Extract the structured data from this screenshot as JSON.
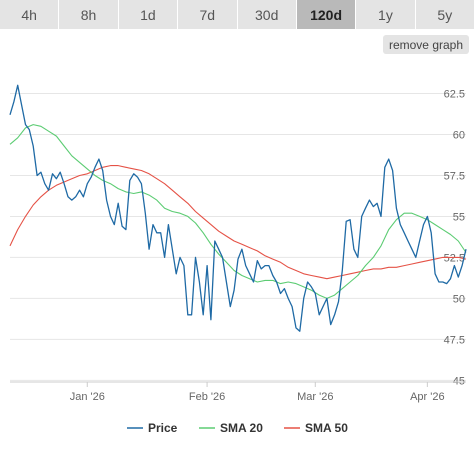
{
  "range_tabs": [
    {
      "label": "4h",
      "active": false
    },
    {
      "label": "8h",
      "active": false
    },
    {
      "label": "1d",
      "active": false
    },
    {
      "label": "7d",
      "active": false
    },
    {
      "label": "30d",
      "active": false
    },
    {
      "label": "120d",
      "active": true
    },
    {
      "label": "1y",
      "active": false
    },
    {
      "label": "5y",
      "active": false
    }
  ],
  "remove_graph_label": "remove graph",
  "chart_data": {
    "type": "line",
    "x_ticks": [
      "Jan '26",
      "Feb '26",
      "Mar '26",
      "Apr '26"
    ],
    "y_ticks": [
      45,
      47.5,
      50,
      52.5,
      55,
      57.5,
      60,
      62.5
    ],
    "y_tick_labels": [
      "45",
      "47.5",
      "50",
      "52.5",
      "55",
      "57.5",
      "60",
      "62.5"
    ],
    "ylim": [
      44.9,
      64.3
    ],
    "x_range": [
      0,
      118
    ],
    "x_tick_positions": [
      20,
      51,
      79,
      108
    ],
    "grid": true,
    "legend_position": "bottom",
    "series": [
      {
        "name": "Price",
        "color": "#1f6aa5",
        "points": [
          [
            0,
            61.2
          ],
          [
            1,
            62.0
          ],
          [
            2,
            63.0
          ],
          [
            3,
            61.8
          ],
          [
            4,
            60.6
          ],
          [
            5,
            60.3
          ],
          [
            6,
            59.3
          ],
          [
            7,
            57.5
          ],
          [
            8,
            57.7
          ],
          [
            9,
            57.0
          ],
          [
            10,
            56.6
          ],
          [
            11,
            57.6
          ],
          [
            12,
            57.3
          ],
          [
            13,
            57.7
          ],
          [
            14,
            57.0
          ],
          [
            15,
            56.2
          ],
          [
            16,
            56.0
          ],
          [
            17,
            56.2
          ],
          [
            18,
            56.6
          ],
          [
            19,
            56.2
          ],
          [
            20,
            57.0
          ],
          [
            21,
            57.4
          ],
          [
            22,
            58.0
          ],
          [
            23,
            58.5
          ],
          [
            24,
            57.8
          ],
          [
            25,
            56.0
          ],
          [
            26,
            55.0
          ],
          [
            27,
            54.5
          ],
          [
            28,
            55.8
          ],
          [
            29,
            54.4
          ],
          [
            30,
            54.2
          ],
          [
            31,
            57.2
          ],
          [
            32,
            57.6
          ],
          [
            33,
            57.4
          ],
          [
            34,
            57.0
          ],
          [
            35,
            55.2
          ],
          [
            36,
            53.0
          ],
          [
            37,
            54.5
          ],
          [
            38,
            54.0
          ],
          [
            39,
            54.0
          ],
          [
            40,
            52.5
          ],
          [
            41,
            54.5
          ],
          [
            42,
            53.0
          ],
          [
            43,
            51.5
          ],
          [
            44,
            52.5
          ],
          [
            45,
            52.0
          ],
          [
            46,
            49.0
          ],
          [
            47,
            49.0
          ],
          [
            48,
            52.5
          ],
          [
            49,
            51.0
          ],
          [
            50,
            49.0
          ],
          [
            51,
            52.0
          ],
          [
            52,
            48.7
          ],
          [
            53,
            53.5
          ],
          [
            54,
            53.0
          ],
          [
            55,
            52.5
          ],
          [
            56,
            51.0
          ],
          [
            57,
            49.5
          ],
          [
            58,
            50.5
          ],
          [
            59,
            52.4
          ],
          [
            60,
            53.0
          ],
          [
            61,
            52.0
          ],
          [
            62,
            51.5
          ],
          [
            63,
            51.0
          ],
          [
            64,
            52.3
          ],
          [
            65,
            51.8
          ],
          [
            66,
            52.0
          ],
          [
            67,
            52.0
          ],
          [
            68,
            51.4
          ],
          [
            69,
            51.0
          ],
          [
            70,
            50.3
          ],
          [
            71,
            50.6
          ],
          [
            72,
            50.0
          ],
          [
            73,
            49.5
          ],
          [
            74,
            48.2
          ],
          [
            75,
            48.0
          ],
          [
            76,
            50.0
          ],
          [
            77,
            51.0
          ],
          [
            78,
            50.7
          ],
          [
            79,
            50.3
          ],
          [
            80,
            49.0
          ],
          [
            81,
            49.5
          ],
          [
            82,
            50.0
          ],
          [
            83,
            48.4
          ],
          [
            84,
            49.0
          ],
          [
            85,
            49.8
          ],
          [
            86,
            51.7
          ],
          [
            87,
            54.7
          ],
          [
            88,
            54.8
          ],
          [
            89,
            53.0
          ],
          [
            90,
            52.5
          ],
          [
            91,
            55.0
          ],
          [
            92,
            55.5
          ],
          [
            93,
            56.0
          ],
          [
            94,
            55.6
          ],
          [
            95,
            55.8
          ],
          [
            96,
            55.0
          ],
          [
            97,
            58.0
          ],
          [
            98,
            58.5
          ],
          [
            99,
            57.8
          ],
          [
            100,
            55.5
          ],
          [
            101,
            54.5
          ],
          [
            102,
            54.0
          ],
          [
            103,
            53.5
          ],
          [
            104,
            53.0
          ],
          [
            105,
            52.5
          ],
          [
            106,
            53.5
          ],
          [
            107,
            54.5
          ],
          [
            108,
            55.0
          ],
          [
            109,
            54.0
          ],
          [
            110,
            51.5
          ],
          [
            111,
            51.0
          ],
          [
            112,
            51.0
          ],
          [
            113,
            50.9
          ],
          [
            114,
            51.2
          ],
          [
            115,
            52.0
          ],
          [
            116,
            51.3
          ],
          [
            117,
            52.0
          ],
          [
            118,
            53.0
          ]
        ]
      },
      {
        "name": "SMA 20",
        "color": "#5ccc73",
        "points": [
          [
            0,
            59.4
          ],
          [
            2,
            59.8
          ],
          [
            4,
            60.4
          ],
          [
            6,
            60.6
          ],
          [
            8,
            60.5
          ],
          [
            10,
            60.2
          ],
          [
            12,
            59.9
          ],
          [
            14,
            59.3
          ],
          [
            16,
            58.7
          ],
          [
            18,
            58.3
          ],
          [
            20,
            57.9
          ],
          [
            22,
            57.5
          ],
          [
            24,
            57.2
          ],
          [
            26,
            57.0
          ],
          [
            28,
            56.7
          ],
          [
            30,
            56.5
          ],
          [
            32,
            56.4
          ],
          [
            34,
            56.5
          ],
          [
            36,
            56.3
          ],
          [
            38,
            56.0
          ],
          [
            40,
            55.5
          ],
          [
            42,
            55.3
          ],
          [
            44,
            55.2
          ],
          [
            46,
            55.0
          ],
          [
            48,
            54.6
          ],
          [
            50,
            54.0
          ],
          [
            52,
            53.3
          ],
          [
            54,
            52.7
          ],
          [
            56,
            52.2
          ],
          [
            58,
            51.7
          ],
          [
            60,
            51.4
          ],
          [
            62,
            51.2
          ],
          [
            64,
            51.0
          ],
          [
            66,
            51.1
          ],
          [
            68,
            51.1
          ],
          [
            70,
            50.9
          ],
          [
            72,
            51.0
          ],
          [
            74,
            50.9
          ],
          [
            76,
            50.7
          ],
          [
            78,
            50.5
          ],
          [
            80,
            50.2
          ],
          [
            82,
            50.0
          ],
          [
            84,
            50.2
          ],
          [
            86,
            50.6
          ],
          [
            88,
            51.0
          ],
          [
            90,
            51.4
          ],
          [
            92,
            52.0
          ],
          [
            94,
            52.5
          ],
          [
            96,
            53.2
          ],
          [
            98,
            54.2
          ],
          [
            100,
            54.8
          ],
          [
            102,
            55.2
          ],
          [
            104,
            55.2
          ],
          [
            106,
            55.0
          ],
          [
            108,
            54.8
          ],
          [
            110,
            54.5
          ],
          [
            112,
            54.2
          ],
          [
            114,
            53.9
          ],
          [
            116,
            53.5
          ],
          [
            118,
            52.8
          ]
        ]
      },
      {
        "name": "SMA 50",
        "color": "#e55246",
        "points": [
          [
            0,
            53.2
          ],
          [
            2,
            54.2
          ],
          [
            4,
            55.0
          ],
          [
            6,
            55.7
          ],
          [
            8,
            56.2
          ],
          [
            10,
            56.6
          ],
          [
            12,
            56.9
          ],
          [
            14,
            57.1
          ],
          [
            16,
            57.3
          ],
          [
            18,
            57.5
          ],
          [
            20,
            57.6
          ],
          [
            22,
            57.8
          ],
          [
            24,
            58.0
          ],
          [
            26,
            58.1
          ],
          [
            28,
            58.1
          ],
          [
            30,
            58.0
          ],
          [
            32,
            57.9
          ],
          [
            34,
            57.8
          ],
          [
            36,
            57.6
          ],
          [
            38,
            57.3
          ],
          [
            40,
            57.0
          ],
          [
            42,
            56.6
          ],
          [
            44,
            56.2
          ],
          [
            46,
            55.8
          ],
          [
            48,
            55.3
          ],
          [
            50,
            54.9
          ],
          [
            52,
            54.5
          ],
          [
            54,
            54.1
          ],
          [
            56,
            53.8
          ],
          [
            58,
            53.5
          ],
          [
            60,
            53.3
          ],
          [
            62,
            53.1
          ],
          [
            64,
            52.9
          ],
          [
            66,
            52.6
          ],
          [
            68,
            52.4
          ],
          [
            70,
            52.2
          ],
          [
            72,
            51.9
          ],
          [
            74,
            51.7
          ],
          [
            76,
            51.5
          ],
          [
            78,
            51.4
          ],
          [
            80,
            51.3
          ],
          [
            82,
            51.2
          ],
          [
            84,
            51.3
          ],
          [
            86,
            51.4
          ],
          [
            88,
            51.5
          ],
          [
            90,
            51.6
          ],
          [
            92,
            51.7
          ],
          [
            94,
            51.8
          ],
          [
            96,
            51.8
          ],
          [
            98,
            51.9
          ],
          [
            100,
            51.9
          ],
          [
            102,
            52.0
          ],
          [
            104,
            52.1
          ],
          [
            106,
            52.2
          ],
          [
            108,
            52.3
          ],
          [
            110,
            52.4
          ],
          [
            112,
            52.5
          ],
          [
            114,
            52.5
          ],
          [
            116,
            52.5
          ],
          [
            118,
            52.4
          ]
        ]
      }
    ]
  }
}
